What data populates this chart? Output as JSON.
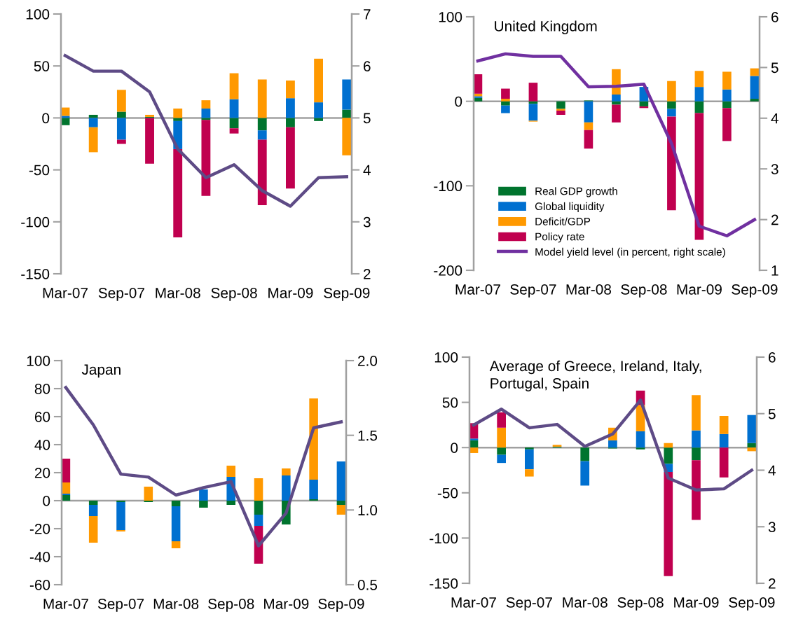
{
  "chart_data": [
    {
      "type": "bar",
      "stacked": true,
      "categories": [
        "Mar-07",
        null,
        "Sep-07",
        null,
        "Mar-08",
        null,
        "Sep-08",
        null,
        "Mar-09",
        null,
        "Sep-09"
      ],
      "ylim": [
        -150,
        100
      ],
      "yticks": [
        -150,
        -100,
        -50,
        0,
        50,
        100
      ],
      "y2lim": [
        2,
        7
      ],
      "y2ticks": [
        2,
        3,
        4,
        5,
        6,
        7
      ],
      "series": [
        {
          "color": "#00742e",
          "values": [
            -7,
            3,
            6,
            1,
            -3,
            -2,
            -10,
            -12,
            -9,
            -3,
            8
          ]
        },
        {
          "color": "#0070d0",
          "values": [
            2,
            -9,
            -21,
            0,
            -27,
            9,
            18,
            -9,
            19,
            15,
            29
          ]
        },
        {
          "color": "#ff9900",
          "values": [
            8,
            -24,
            21,
            2,
            9,
            8,
            25,
            37,
            17,
            42,
            -36
          ]
        },
        {
          "color": "#c0004f",
          "values": [
            0,
            0,
            -4,
            -44,
            -85,
            -73,
            -5,
            -63,
            -59,
            0,
            0
          ]
        },
        {
          "type": "line",
          "axis": "y2",
          "color": "#5e4b86",
          "values": [
            6.2,
            5.9,
            5.9,
            5.5,
            4.4,
            3.85,
            4.1,
            3.6,
            3.3,
            3.85,
            3.87
          ]
        }
      ]
    },
    {
      "type": "bar",
      "stacked": true,
      "title": "United Kingdom",
      "legend": "bottom left",
      "categories": [
        "Mar-07",
        null,
        "Sep-07",
        null,
        "Mar-08",
        null,
        "Sep-08",
        null,
        "Mar-09",
        null,
        "Sep-09"
      ],
      "ylim": [
        -200,
        100
      ],
      "yticks": [
        -200,
        -100,
        0,
        100
      ],
      "y2lim": [
        1,
        6
      ],
      "y2ticks": [
        1,
        2,
        3,
        4,
        5,
        6
      ],
      "series": [
        {
          "name": "Real GDP growth",
          "color": "#00742e",
          "values": [
            4,
            -5,
            -3,
            -9,
            1,
            -4,
            -6,
            -9,
            -14,
            -8,
            3
          ]
        },
        {
          "name": "Global liquidity",
          "color": "#0070d0",
          "values": [
            2,
            -9,
            -20,
            0,
            -25,
            8,
            17,
            -9,
            17,
            14,
            27
          ]
        },
        {
          "name": "Deficit/GDP",
          "color": "#ff9900",
          "values": [
            3,
            3,
            -1,
            -2,
            -9,
            30,
            null,
            24,
            19,
            21,
            9
          ]
        },
        {
          "name": "Policy rate",
          "color": "#c0004f",
          "values": [
            23,
            12,
            22,
            -5,
            -22,
            -21,
            -2,
            -111,
            -150,
            -39,
            0
          ]
        },
        {
          "type": "line",
          "axis": "y2",
          "name": "Model yield level (in percent, right scale)",
          "color": "#7030a0",
          "values": [
            5.13,
            5.27,
            5.22,
            5.22,
            4.62,
            4.63,
            4.67,
            3.5,
            1.87,
            1.68,
            2.0
          ]
        }
      ]
    },
    {
      "type": "bar",
      "stacked": true,
      "title": "Japan",
      "categories": [
        "Mar-07",
        null,
        "Sep-07",
        null,
        "Mar-08",
        null,
        "Sep-08",
        null,
        "Mar-09",
        null,
        "Sep-09"
      ],
      "ylim": [
        -60,
        100
      ],
      "yticks": [
        -60,
        -40,
        -20,
        0,
        20,
        40,
        60,
        80,
        100
      ],
      "y2lim": [
        0.5,
        2.0
      ],
      "y2ticks": [
        {
          "value": 0.5,
          "label": "0.5"
        },
        {
          "value": 1.0,
          "label": "1.0"
        },
        {
          "value": 1.5,
          "label": "1.5"
        },
        {
          "value": 2.0,
          "label": "2.0"
        }
      ],
      "series": [
        {
          "color": "#00742e",
          "values": [
            4,
            -3,
            -1,
            -1,
            -4,
            -5,
            -3,
            -10,
            -17,
            1,
            -3
          ]
        },
        {
          "color": "#0070d0",
          "values": [
            1,
            -8,
            -20,
            0,
            -25,
            8,
            17,
            -8,
            18,
            14,
            28
          ]
        },
        {
          "color": "#ff9900",
          "values": [
            8,
            -19,
            -1,
            10,
            -5,
            0,
            8,
            16,
            5,
            58,
            -7
          ]
        },
        {
          "color": "#c0004f",
          "values": [
            17,
            0,
            0,
            0,
            0,
            0,
            0,
            -27,
            0,
            0,
            0
          ]
        },
        {
          "type": "line",
          "axis": "y2",
          "color": "#5e4b86",
          "values": [
            1.82,
            1.57,
            1.24,
            1.22,
            1.1,
            1.15,
            1.19,
            0.76,
            0.98,
            1.55,
            1.59
          ]
        }
      ]
    },
    {
      "type": "bar",
      "stacked": true,
      "title": "Average of Greece, Ireland, Italy,\nPortugal, Spain",
      "categories": [
        "Mar-07",
        null,
        "Sep-07",
        null,
        "Mar-08",
        null,
        "Sep-08",
        null,
        "Mar-09",
        null,
        "Sep-09"
      ],
      "ylim": [
        -150,
        100
      ],
      "yticks": [
        -150,
        -100,
        -50,
        0,
        50,
        100
      ],
      "y2lim": [
        2,
        6
      ],
      "y2ticks": [
        2,
        3,
        4,
        5,
        6
      ],
      "series": [
        {
          "color": "#00742e",
          "values": [
            8,
            -8,
            -2,
            1,
            -15,
            -1,
            -2,
            -18,
            -14,
            0,
            5
          ]
        },
        {
          "color": "#0070d0",
          "values": [
            2,
            -9,
            -22,
            0,
            -27,
            8,
            18,
            -9,
            19,
            15,
            31
          ]
        },
        {
          "color": "#ff9900",
          "values": [
            -6,
            22,
            -8,
            2,
            null,
            14,
            29,
            5,
            39,
            20,
            -4
          ]
        },
        {
          "color": "#c0004f",
          "values": [
            17,
            17,
            0,
            0,
            0,
            0,
            16,
            -115,
            -66,
            -33,
            0
          ]
        },
        {
          "type": "line",
          "axis": "y2",
          "color": "#5e4b86",
          "values": [
            4.8,
            5.08,
            4.75,
            4.81,
            4.42,
            4.64,
            5.24,
            3.86,
            3.65,
            3.67,
            4.0
          ]
        }
      ]
    }
  ]
}
